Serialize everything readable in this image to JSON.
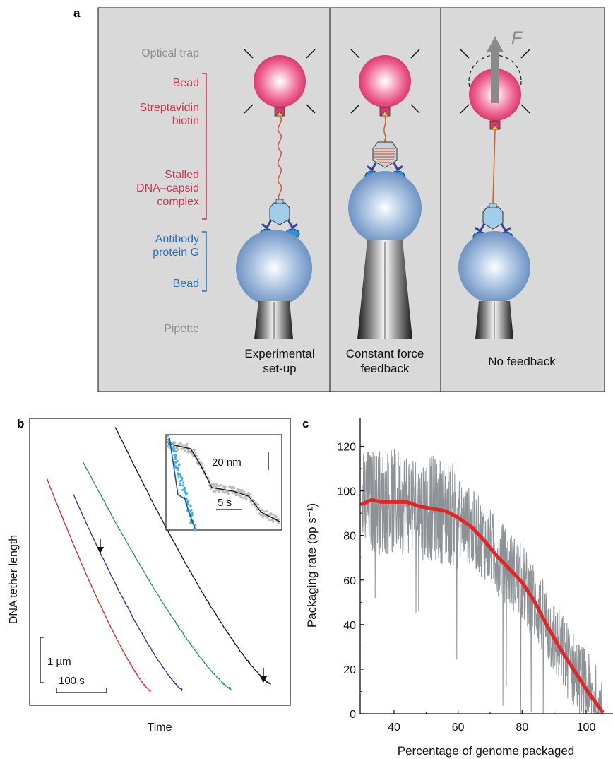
{
  "panel_a": {
    "letter": "a",
    "labels": {
      "optical_trap": "Optical trap",
      "bead_top": "Bead",
      "streptavidin_1": "Streptavidin",
      "streptavidin_2": "biotin",
      "stalled_1": "Stalled",
      "stalled_2": "DNA–capsid",
      "stalled_3": "complex",
      "antibody_1": "Antibody",
      "antibody_2": "protein G",
      "bead_bottom": "Bead",
      "pipette": "Pipette"
    },
    "captions": {
      "experimental_1": "Experimental",
      "experimental_2": "set-up",
      "constant_1": "Constant force",
      "constant_2": "feedback",
      "no_feedback": "No feedback"
    },
    "force_label": "F",
    "colors": {
      "panel_bg": "#d9d9d9",
      "red_label": "#c8354f",
      "blue_label": "#2a6eb5",
      "gray_label": "#8c8c8c"
    }
  },
  "panel_b": {
    "letter": "b",
    "ylabel": "DNA tether length",
    "xlabel": "Time",
    "scale_y": "1 µm",
    "scale_x": "100 s",
    "inset_scale_y": "20 nm",
    "inset_scale_x": "5 s",
    "trace_colors": [
      "#e02020",
      "#2a2f8f",
      "#1a9a4a",
      "#111111"
    ]
  },
  "chart_data": {
    "type": "line",
    "xlabel": "Percentage of genome packaged",
    "ylabel": "Packaging rate (bp s⁻¹)",
    "xlim": [
      30,
      105
    ],
    "ylim": [
      0,
      128
    ],
    "x_ticks": [
      40,
      60,
      80,
      100
    ],
    "y_ticks": [
      0,
      20,
      40,
      60,
      80,
      100,
      120
    ],
    "series": [
      {
        "color": "#e02626",
        "x": [
          30,
          33,
          36,
          40,
          44,
          48,
          52,
          56,
          60,
          64,
          68,
          72,
          76,
          80,
          84,
          88,
          92,
          96,
          100,
          102,
          104,
          105
        ],
        "y": [
          94,
          96,
          95,
          95,
          95,
          93,
          92,
          91,
          88,
          84,
          78,
          71,
          65,
          59,
          50,
          39,
          29,
          20,
          11,
          7,
          3,
          1
        ]
      }
    ],
    "raw_color": "#8c9296"
  },
  "panel_c": {
    "letter": "c"
  }
}
